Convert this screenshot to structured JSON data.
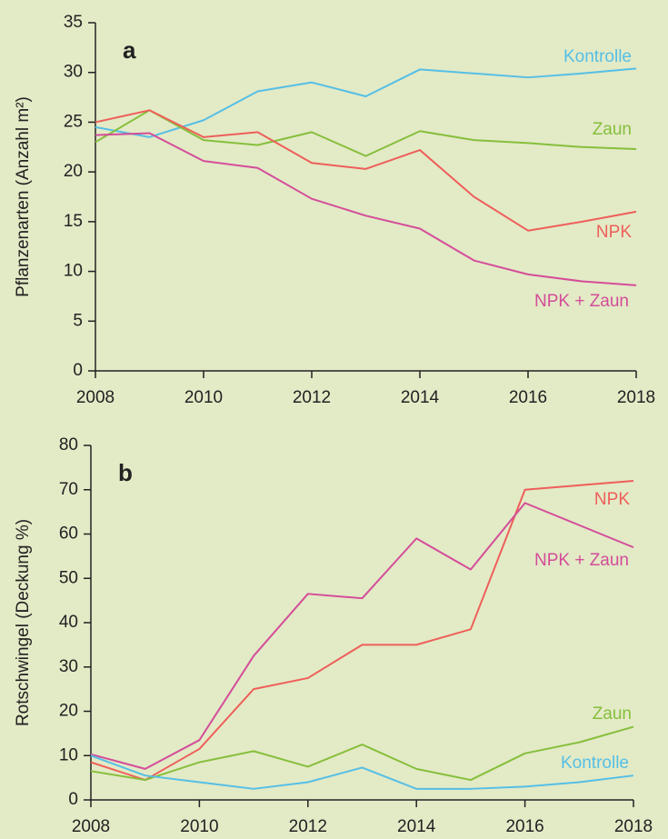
{
  "chart_data": [
    {
      "type": "line",
      "label": "a",
      "ylabel": "Pflanzenarten (Anzahl m²)",
      "x": [
        2008,
        2009,
        2010,
        2011,
        2012,
        2013,
        2014,
        2015,
        2016,
        2017,
        2018
      ],
      "xlim": [
        2008,
        2018
      ],
      "xticks": [
        2008,
        2010,
        2012,
        2014,
        2016,
        2018
      ],
      "ylim": [
        0,
        35
      ],
      "yticks": [
        0,
        5,
        10,
        15,
        20,
        25,
        30,
        35
      ],
      "series": [
        {
          "name": "Kontrolle",
          "color": "#55bfe6",
          "values": [
            24.5,
            23.5,
            25.2,
            28.1,
            29.0,
            27.6,
            30.3,
            29.9,
            29.5,
            29.9,
            30.4
          ]
        },
        {
          "name": "Zaun",
          "color": "#86bf3c",
          "values": [
            23.0,
            26.2,
            23.2,
            22.7,
            24.0,
            21.6,
            24.1,
            23.2,
            22.9,
            22.5,
            22.3
          ]
        },
        {
          "name": "NPK",
          "color": "#ee5f5a",
          "values": [
            25.0,
            26.2,
            23.5,
            24.0,
            20.9,
            20.3,
            22.2,
            17.5,
            14.1,
            15.0,
            16.0
          ]
        },
        {
          "name": "NPK + Zaun",
          "color": "#d44d99",
          "values": [
            23.7,
            23.9,
            21.1,
            20.4,
            17.3,
            15.6,
            14.3,
            11.1,
            9.7,
            9.0,
            8.6
          ]
        }
      ]
    },
    {
      "type": "line",
      "label": "b",
      "ylabel": "Rotschwingel (Deckung %)",
      "x": [
        2008,
        2009,
        2010,
        2011,
        2012,
        2013,
        2014,
        2015,
        2016,
        2017,
        2018
      ],
      "xlim": [
        2008,
        2018
      ],
      "xticks": [
        2008,
        2010,
        2012,
        2014,
        2016,
        2018
      ],
      "ylim": [
        0,
        80
      ],
      "yticks": [
        0,
        10,
        20,
        30,
        40,
        50,
        60,
        70,
        80
      ],
      "series": [
        {
          "name": "NPK",
          "color": "#ee5f5a",
          "values": [
            8.5,
            4.5,
            11.5,
            25,
            27.5,
            35,
            35,
            38.5,
            70,
            71,
            72
          ]
        },
        {
          "name": "NPK + Zaun",
          "color": "#d44d99",
          "values": [
            10.3,
            7,
            13.5,
            32.5,
            46.5,
            45.5,
            59,
            52,
            67,
            62,
            57
          ]
        },
        {
          "name": "Zaun",
          "color": "#86bf3c",
          "values": [
            6.5,
            4.5,
            8.5,
            11,
            7.5,
            12.5,
            7,
            4.5,
            10.5,
            13,
            16.5
          ]
        },
        {
          "name": "Kontrolle",
          "color": "#55bfe6",
          "values": [
            10,
            5.5,
            4,
            2.5,
            4,
            7.3,
            2.5,
            2.5,
            3,
            4,
            5.5
          ]
        }
      ]
    }
  ]
}
